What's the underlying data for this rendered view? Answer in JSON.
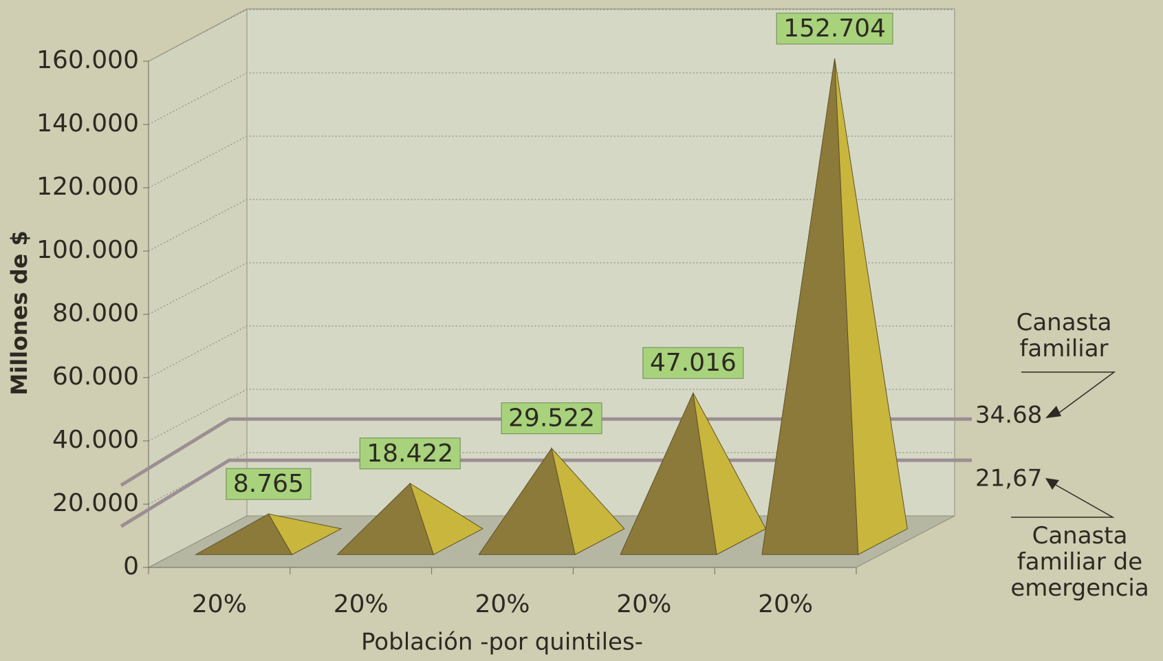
{
  "chart_data": {
    "type": "pyramid",
    "y_label": "Millones de $",
    "x_label": "Población -por quintiles-",
    "categories": [
      "20%",
      "20%",
      "20%",
      "20%",
      "20%"
    ],
    "values": [
      8765,
      18422,
      29522,
      47016,
      152704
    ],
    "value_labels": [
      "8.765",
      "18.422",
      "29.522",
      "47.016",
      "152.704"
    ],
    "color": "#c9b63c",
    "ylim": [
      0,
      160000
    ],
    "yticks": [
      0,
      {
        "value": 20000,
        "label": "20.000"
      },
      {
        "value": 40000,
        "label": "40.000"
      },
      {
        "value": 60000,
        "label": "60.000"
      },
      {
        "value": 80000,
        "label": "80.000"
      },
      {
        "value": 100000,
        "label": "100.000"
      },
      {
        "value": 120000,
        "label": "120.000"
      },
      {
        "value": 140000,
        "label": "140.000"
      },
      {
        "value": 160000,
        "label": "160.000"
      }
    ],
    "grid": true,
    "reference_lines": [
      {
        "name": "Canasta familiar",
        "value": 34680,
        "label": "34.68",
        "color": "#9b8f93"
      },
      {
        "name": "Canasta familiar de emergencia",
        "value": 21670,
        "label": "21,67",
        "color": "#9b8f93"
      }
    ]
  }
}
